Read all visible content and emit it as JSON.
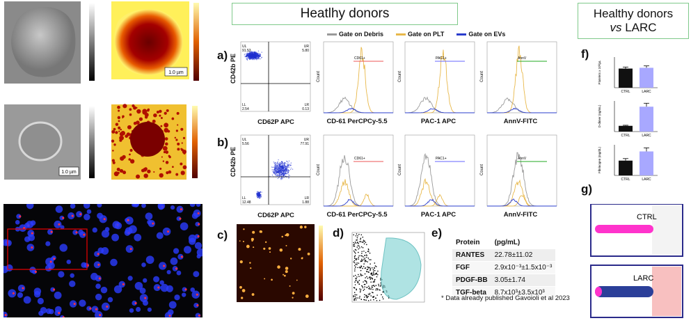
{
  "header_left": "Heatlhy donors",
  "header_right": {
    "line1": "Healthy donors",
    "line2_italic": "vs",
    "line2": "LARC"
  },
  "afm": {
    "scale_1": "1.0 µm",
    "scale_2": "1.0 µm"
  },
  "legend": [
    "Gate on Debris",
    "Gate on PLT",
    "Gate on EVs"
  ],
  "panel_a": {
    "label": "a)",
    "scatter": {
      "y_label": "CD42b PE",
      "x_label": "CD62P APC",
      "quadrants": [
        {
          "name": "UL",
          "value": "91.53"
        },
        {
          "name": "UR",
          "value": "5.80"
        },
        {
          "name": "LL",
          "value": "2.54"
        },
        {
          "name": "LR",
          "value": "0.13"
        }
      ]
    }
  },
  "panel_b": {
    "label": "b)",
    "scatter": {
      "y_label": "CD42b PE",
      "x_label": "CD62P APC",
      "quadrants": [
        {
          "name": "UL",
          "value": "5.56"
        },
        {
          "name": "UR",
          "value": "77.91"
        },
        {
          "name": "LL",
          "value": "12.48"
        },
        {
          "name": "LR",
          "value": "1.88"
        }
      ]
    }
  },
  "histograms": {
    "y_label": "Count",
    "x_labels": [
      "CD-61 PerCPCy-5.5",
      "PAC-1 APC",
      "AnnV-FITC"
    ],
    "gates": [
      "CD61+",
      "PAC1+",
      "AnnV"
    ]
  },
  "panel_c": {
    "label": "c)"
  },
  "panel_d": {
    "label": "d)"
  },
  "panel_e": {
    "label": "e)",
    "table": {
      "header": [
        "Protein",
        "(pg/mL)"
      ],
      "rows": [
        [
          "RANTES",
          "22.78±11.02"
        ],
        [
          "FGF",
          "2.9x10⁻³±1.5x10⁻³"
        ],
        [
          "PDGF-BB",
          "3.05±1.74"
        ],
        [
          "TGF-beta",
          "8.7x10³±3.5x10³"
        ]
      ]
    },
    "note": "* Data already published Gavoioli et al 2023"
  },
  "panel_f": {
    "label": "f)",
    "charts": [
      {
        "y_label": "Platelets x 10³/µL",
        "categories": [
          "CTRL",
          "LARC"
        ],
        "values": [
          250,
          260
        ],
        "errors": [
          20,
          25
        ],
        "ylim": [
          0,
          400
        ]
      },
      {
        "y_label": "D-dimer (ng/mL)",
        "categories": [
          "CTRL",
          "LARC"
        ],
        "values": [
          150,
          650
        ],
        "errors": [
          15,
          90
        ],
        "ylim": [
          0,
          800
        ]
      },
      {
        "y_label": "Fibrinogen (mg/dL)",
        "categories": [
          "CTRL",
          "LARC"
        ],
        "values": [
          290,
          470
        ],
        "errors": [
          40,
          70
        ],
        "ylim": [
          0,
          600
        ]
      }
    ]
  },
  "panel_g": {
    "label": "g)",
    "labels": [
      "CTRL",
      "LARC"
    ]
  }
}
